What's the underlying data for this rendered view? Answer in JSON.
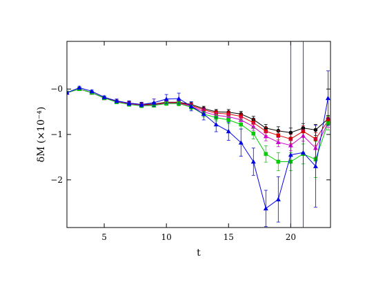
{
  "chart_data": {
    "type": "line",
    "xlabel": "t",
    "ylabel": "δM   (×10⁻⁴)",
    "xlim": [
      2,
      23.2
    ],
    "ylim": [
      -3.05,
      1.05
    ],
    "x_ticks": [
      5,
      10,
      15,
      20
    ],
    "y_ticks": [
      0,
      -1,
      -2
    ],
    "y_tick_labels": [
      "−0",
      "−1",
      "−2"
    ],
    "grid": false,
    "x": [
      2,
      3,
      4,
      5,
      6,
      7,
      8,
      9,
      10,
      11,
      12,
      13,
      14,
      15,
      16,
      17,
      18,
      19,
      20,
      21,
      22,
      23
    ],
    "series": [
      {
        "color": "#000000",
        "marker": "circle",
        "values": [
          -0.08,
          0.0,
          -0.08,
          -0.2,
          -0.27,
          -0.31,
          -0.34,
          -0.33,
          -0.29,
          -0.29,
          -0.34,
          -0.43,
          -0.5,
          -0.51,
          -0.55,
          -0.67,
          -0.86,
          -0.92,
          -0.96,
          -0.86,
          -0.9,
          -0.66
        ],
        "errors": [
          0.02,
          0.02,
          0.03,
          0.03,
          0.03,
          0.04,
          0.04,
          0.04,
          0.04,
          0.05,
          0.05,
          0.05,
          0.05,
          0.06,
          0.06,
          0.07,
          0.08,
          0.09,
          0.1,
          0.1,
          0.12,
          0.08
        ]
      },
      {
        "color": "#e00000",
        "marker": "square",
        "values": [
          -0.08,
          0.0,
          -0.08,
          -0.2,
          -0.28,
          -0.32,
          -0.35,
          -0.34,
          -0.3,
          -0.3,
          -0.36,
          -0.46,
          -0.53,
          -0.55,
          -0.6,
          -0.74,
          -0.93,
          -1.02,
          -1.1,
          -0.93,
          -1.1,
          -0.7
        ],
        "errors": [
          0.02,
          0.02,
          0.03,
          0.03,
          0.03,
          0.04,
          0.04,
          0.04,
          0.04,
          0.05,
          0.05,
          0.05,
          0.05,
          0.06,
          0.06,
          0.08,
          0.09,
          0.1,
          0.1,
          0.12,
          0.14,
          0.08
        ]
      },
      {
        "color": "#d000d0",
        "marker": "triangle",
        "values": [
          -0.08,
          0.0,
          -0.08,
          -0.2,
          -0.28,
          -0.33,
          -0.36,
          -0.35,
          -0.31,
          -0.31,
          -0.38,
          -0.5,
          -0.58,
          -0.61,
          -0.68,
          -0.83,
          -1.04,
          -1.17,
          -1.24,
          -1.03,
          -1.3,
          -0.74
        ],
        "errors": [
          0.02,
          0.02,
          0.03,
          0.03,
          0.03,
          0.04,
          0.04,
          0.04,
          0.04,
          0.05,
          0.05,
          0.05,
          0.06,
          0.06,
          0.07,
          0.08,
          0.1,
          0.1,
          0.12,
          0.12,
          0.2,
          0.1
        ]
      },
      {
        "color": "#00d000",
        "marker": "square",
        "values": [
          -0.08,
          0.0,
          -0.08,
          -0.2,
          -0.29,
          -0.34,
          -0.37,
          -0.36,
          -0.32,
          -0.32,
          -0.4,
          -0.55,
          -0.63,
          -0.68,
          -0.78,
          -0.98,
          -1.43,
          -1.6,
          -1.6,
          -1.43,
          -1.55,
          -0.75
        ],
        "errors": [
          0.02,
          0.02,
          0.03,
          0.03,
          0.03,
          0.04,
          0.04,
          0.04,
          0.04,
          0.05,
          0.05,
          0.06,
          0.07,
          0.08,
          0.1,
          0.12,
          0.18,
          0.2,
          0.2,
          0.22,
          0.4,
          0.15
        ]
      },
      {
        "color": "#0000e8",
        "marker": "triangle",
        "values": [
          -0.08,
          0.03,
          -0.05,
          -0.18,
          -0.26,
          -0.31,
          -0.34,
          -0.3,
          -0.22,
          -0.21,
          -0.38,
          -0.55,
          -0.78,
          -0.93,
          -1.18,
          -1.6,
          -2.63,
          -2.43,
          -1.45,
          -1.4,
          -1.7,
          -0.2
        ],
        "errors": [
          0.02,
          0.03,
          0.03,
          0.03,
          0.04,
          0.05,
          0.05,
          0.08,
          0.1,
          0.12,
          0.1,
          0.13,
          0.16,
          0.2,
          0.3,
          0.3,
          0.4,
          0.5,
          3.0,
          3.0,
          0.9,
          0.6
        ]
      }
    ]
  }
}
